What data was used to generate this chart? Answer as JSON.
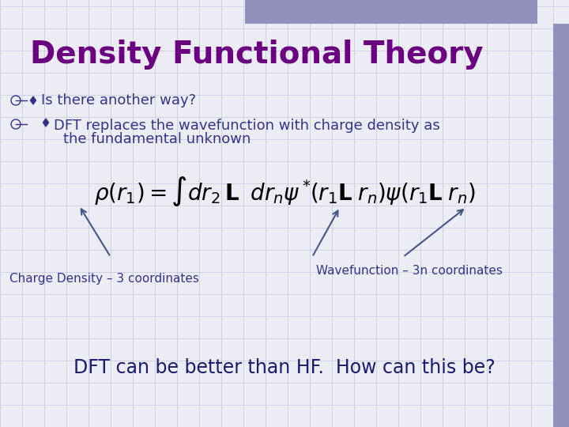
{
  "title": "Density Functional Theory",
  "title_color": "#6B0080",
  "title_fontsize": 28,
  "bullet1": "Is there another way?",
  "bullet2_line1": "DFT replaces the wavefunction with charge density as",
  "bullet2_line2": "the fundamental unknown",
  "bullet_color": "#333388",
  "bullet_fontsize": 13,
  "diamond_color": "#333388",
  "equation_fontsize": 20,
  "label_wavefunction": "Wavefunction – 3n coordinates",
  "label_charge": "Charge Density – 3 coordinates",
  "label_color": "#333388",
  "label_fontsize": 11,
  "footer": "DFT can be better than HF.  How can this be?",
  "footer_color": "#1a1a6e",
  "footer_fontsize": 17,
  "bg_color": "#ECEDF4",
  "grid_color": "#C5C5DC",
  "top_bar_color": "#9090BB",
  "right_bar_color": "#9090BB",
  "arrow_color": "#445588"
}
